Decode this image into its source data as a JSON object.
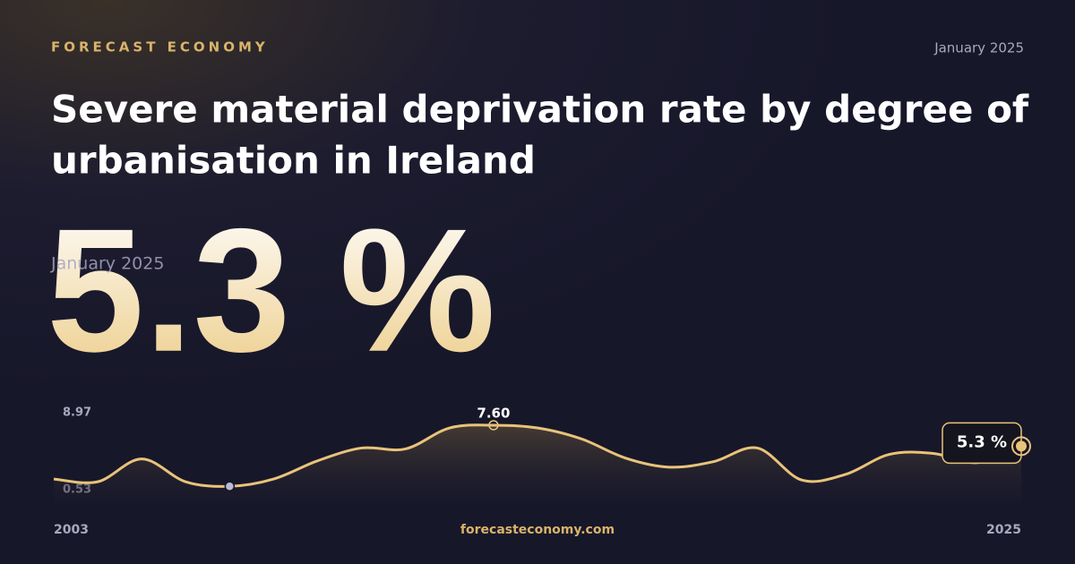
{
  "header": {
    "brand": "FORECAST ECONOMY",
    "date": "January 2025",
    "title_lines": [
      "Severe material deprivation rate by degree of",
      "urbanisation in Ireland"
    ]
  },
  "headline": {
    "value": "5.3 %",
    "date": "January 2025"
  },
  "footer": {
    "site": "forecasteconomy.com"
  },
  "chart_data": {
    "type": "line",
    "x": [
      2003,
      2004,
      2005,
      2006,
      2007,
      2008,
      2009,
      2010,
      2011,
      2012,
      2013,
      2014,
      2015,
      2016,
      2017,
      2018,
      2019,
      2020,
      2021,
      2022,
      2023,
      2024,
      2025
    ],
    "series": [
      {
        "name": "Severe material deprivation rate",
        "color": "#e9c37a",
        "values": [
          1.7,
          1.4,
          3.9,
          1.4,
          0.9,
          1.7,
          3.7,
          5.1,
          5.0,
          7.3,
          7.6,
          7.3,
          6.1,
          4.0,
          3.0,
          3.6,
          5.1,
          1.6,
          2.2,
          4.4,
          4.5,
          3.5,
          5.3
        ]
      }
    ],
    "xlim": [
      2003,
      2025
    ],
    "xticks": [
      2003,
      2025
    ],
    "ylim": [
      0.53,
      8.97
    ],
    "yticks": [
      0.53,
      8.97
    ],
    "peak": {
      "index": 10,
      "label": "7.60"
    },
    "min_index": 4,
    "last_label": "5.3 %"
  }
}
